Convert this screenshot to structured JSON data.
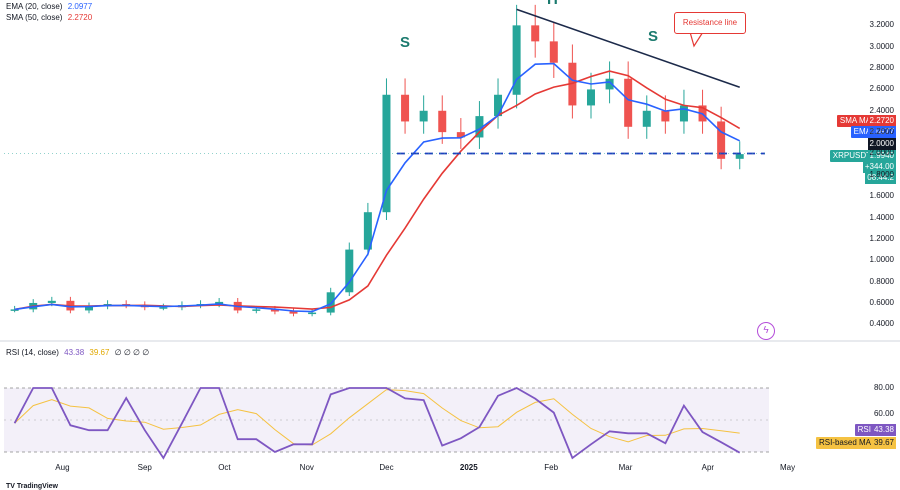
{
  "chart_data": {
    "type": "candlestick",
    "symbol": "XRPUSDT",
    "x_labels": [
      "Aug",
      "Sep",
      "Oct",
      "Nov",
      "Dec",
      "2025",
      "Feb",
      "Mar",
      "Apr",
      "May"
    ],
    "price_axis": {
      "ticks": [
        "3.2000",
        "3.0000",
        "2.8000",
        "2.6000",
        "2.4000",
        "2.2000",
        "2.0000",
        "1.8000",
        "1.6000",
        "1.4000",
        "1.2000",
        "1.0000",
        "0.8000",
        "0.6000",
        "0.4000"
      ],
      "range": [
        0.3,
        3.4
      ]
    },
    "close_series": [
      [
        "2024-07-14",
        0.54
      ],
      [
        "2024-07-21",
        0.6
      ],
      [
        "2024-07-28",
        0.62
      ],
      [
        "2024-08-04",
        0.53
      ],
      [
        "2024-08-11",
        0.57
      ],
      [
        "2024-08-18",
        0.59
      ],
      [
        "2024-08-25",
        0.58
      ],
      [
        "2024-09-01",
        0.56
      ],
      [
        "2024-09-08",
        0.56
      ],
      [
        "2024-09-15",
        0.58
      ],
      [
        "2024-09-22",
        0.59
      ],
      [
        "2024-09-29",
        0.61
      ],
      [
        "2024-10-06",
        0.53
      ],
      [
        "2024-10-13",
        0.54
      ],
      [
        "2024-10-20",
        0.52
      ],
      [
        "2024-10-27",
        0.5
      ],
      [
        "2024-11-03",
        0.51
      ],
      [
        "2024-11-10",
        0.7
      ],
      [
        "2024-11-17",
        1.1
      ],
      [
        "2024-11-24",
        1.45
      ],
      [
        "2024-12-01",
        2.55
      ],
      [
        "2024-12-08",
        2.3
      ],
      [
        "2024-12-15",
        2.4
      ],
      [
        "2024-12-22",
        2.2
      ],
      [
        "2024-12-29",
        2.15
      ],
      [
        "2025-01-05",
        2.35
      ],
      [
        "2025-01-12",
        2.55
      ],
      [
        "2025-01-19",
        3.2
      ],
      [
        "2025-01-26",
        3.05
      ],
      [
        "2025-02-02",
        2.85
      ],
      [
        "2025-02-09",
        2.45
      ],
      [
        "2025-02-16",
        2.6
      ],
      [
        "2025-02-23",
        2.7
      ],
      [
        "2025-03-02",
        2.25
      ],
      [
        "2025-03-09",
        2.4
      ],
      [
        "2025-03-16",
        2.3
      ],
      [
        "2025-03-23",
        2.45
      ],
      [
        "2025-03-30",
        2.3
      ],
      [
        "2025-04-06",
        1.95
      ],
      [
        "2025-04-13",
        1.994
      ]
    ],
    "indicators": {
      "ema": {
        "label": "EMA (20, close)",
        "value": "2.0977",
        "tag": "EMA",
        "color": "#2962ff"
      },
      "sma": {
        "label": "SMA (50, close)",
        "value": "2.2720",
        "tag": "SMA MA",
        "color": "#e53935"
      },
      "rsi": {
        "label": "RSI (14, close)",
        "value": "43.38",
        "ma_value": "39.67",
        "tag": "RSI",
        "ma_tag": "RSI-based MA",
        "ticks": [
          "80.00",
          "60.00"
        ],
        "color": "#7e57c2",
        "ma_color": "#f5c242"
      }
    },
    "last_price": {
      "tag": "XRPUSDT",
      "value": "1.9940",
      "change": "+344.00",
      "countdown": "08:44:2",
      "level_label": "2.0000"
    },
    "annotations": {
      "left_shoulder": "S",
      "head": "H",
      "right_shoulder": "S",
      "resistance_callout": "Resistance line"
    },
    "neckline_level": 2.0,
    "resistance_line": [
      [
        "2025-01-19",
        3.35
      ],
      [
        "2025-04-13",
        2.62
      ]
    ]
  },
  "footer": {
    "logo": "TV TradingView"
  },
  "rsi_placeholders": "∅ ∅ ∅ ∅"
}
